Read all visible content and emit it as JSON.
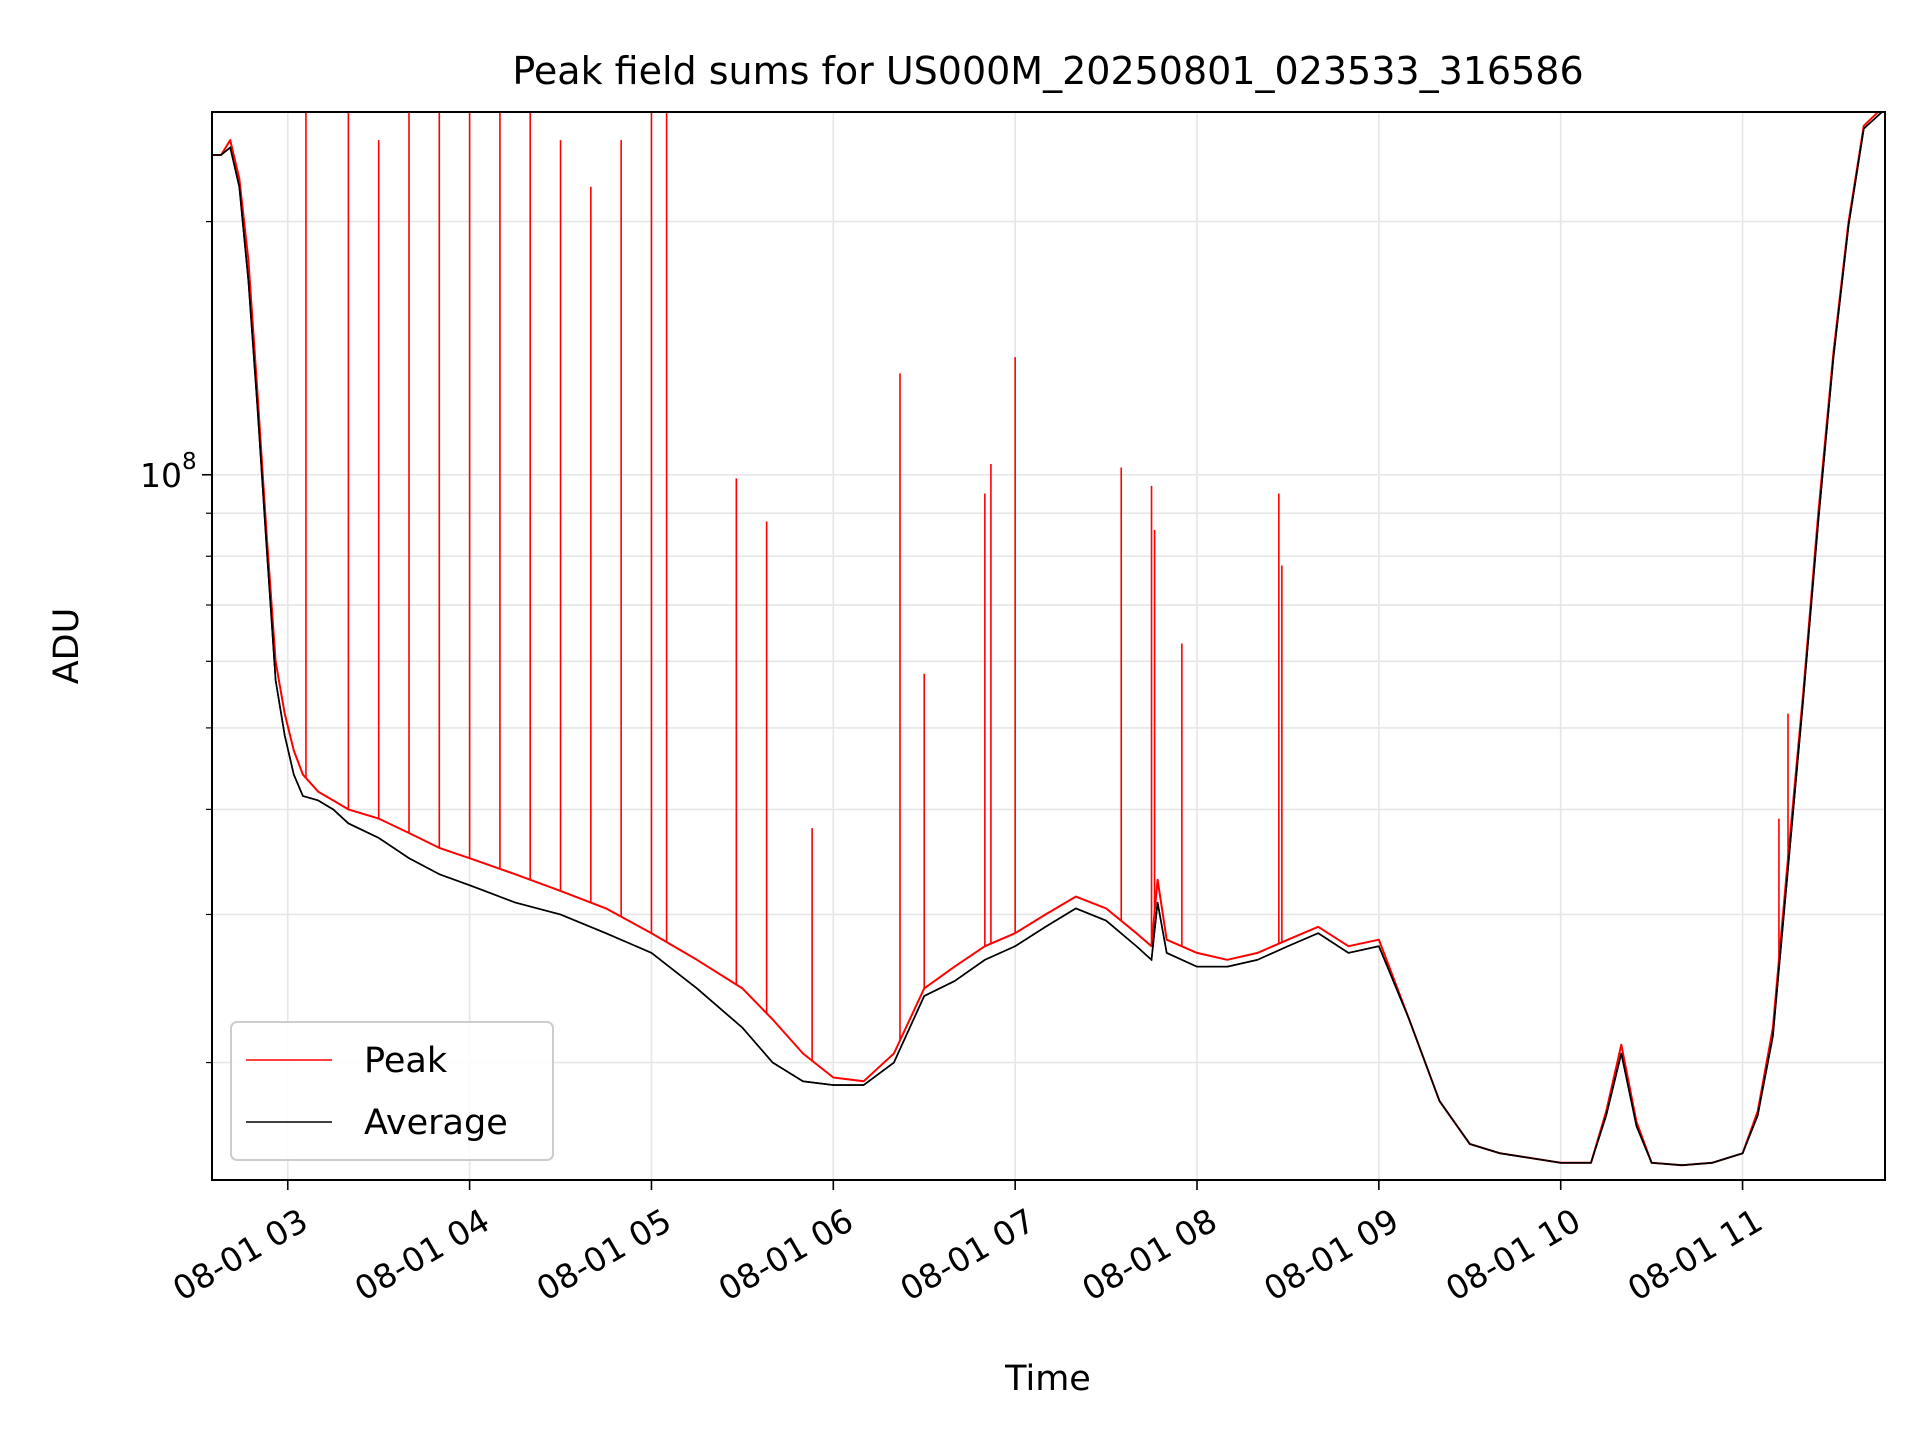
{
  "chart_data": {
    "type": "line",
    "title": "Peak field sums for US000M_20250801_023533_316586",
    "xlabel": "Time",
    "ylabel": "ADU",
    "yscale": "log",
    "ylim": [
      14500000,
      270000000
    ],
    "xlim": [
      "2025-08-01 02:35",
      "2025-08-01 11:47"
    ],
    "grid": true,
    "legend_position": "lower-left",
    "x_tick_labels": [
      "08-01 03",
      "08-01 04",
      "08-01 05",
      "08-01 06",
      "08-01 07",
      "08-01 08",
      "08-01 09",
      "08-01 10",
      "08-01 11"
    ],
    "x_ticks": [
      "2025-08-01 03:00",
      "2025-08-01 04:00",
      "2025-08-01 05:00",
      "2025-08-01 06:00",
      "2025-08-01 07:00",
      "2025-08-01 08:00",
      "2025-08-01 09:00",
      "2025-08-01 10:00",
      "2025-08-01 11:00"
    ],
    "y_tick_label": {
      "base": "10",
      "exponent": "8",
      "value": 100000000
    },
    "y_minor_ticks": [
      20000000,
      30000000,
      40000000,
      50000000,
      60000000,
      70000000,
      80000000,
      90000000,
      200000000
    ],
    "series": [
      {
        "name": "Peak",
        "color": "#ff0000",
        "x": [
          "2025-08-01 02:35",
          "2025-08-01 02:38",
          "2025-08-01 02:41",
          "2025-08-01 02:44",
          "2025-08-01 02:47",
          "2025-08-01 02:50",
          "2025-08-01 02:53",
          "2025-08-01 02:56",
          "2025-08-01 02:59",
          "2025-08-01 03:02",
          "2025-08-01 03:05",
          "2025-08-01 03:10",
          "2025-08-01 03:15",
          "2025-08-01 03:20",
          "2025-08-01 03:30",
          "2025-08-01 03:40",
          "2025-08-01 03:50",
          "2025-08-01 04:00",
          "2025-08-01 04:15",
          "2025-08-01 04:30",
          "2025-08-01 04:45",
          "2025-08-01 05:00",
          "2025-08-01 05:15",
          "2025-08-01 05:30",
          "2025-08-01 05:40",
          "2025-08-01 05:50",
          "2025-08-01 06:00",
          "2025-08-01 06:10",
          "2025-08-01 06:20",
          "2025-08-01 06:30",
          "2025-08-01 06:40",
          "2025-08-01 06:50",
          "2025-08-01 07:00",
          "2025-08-01 07:10",
          "2025-08-01 07:20",
          "2025-08-01 07:30",
          "2025-08-01 07:40",
          "2025-08-01 07:45",
          "2025-08-01 07:47",
          "2025-08-01 07:50",
          "2025-08-01 08:00",
          "2025-08-01 08:10",
          "2025-08-01 08:20",
          "2025-08-01 08:30",
          "2025-08-01 08:40",
          "2025-08-01 08:50",
          "2025-08-01 09:00",
          "2025-08-01 09:10",
          "2025-08-01 09:20",
          "2025-08-01 09:30",
          "2025-08-01 09:40",
          "2025-08-01 09:50",
          "2025-08-01 10:00",
          "2025-08-01 10:10",
          "2025-08-01 10:15",
          "2025-08-01 10:20",
          "2025-08-01 10:25",
          "2025-08-01 10:30",
          "2025-08-01 10:40",
          "2025-08-01 10:50",
          "2025-08-01 11:00",
          "2025-08-01 11:05",
          "2025-08-01 11:10",
          "2025-08-01 11:15",
          "2025-08-01 11:20",
          "2025-08-01 11:25",
          "2025-08-01 11:30",
          "2025-08-01 11:35",
          "2025-08-01 11:40",
          "2025-08-01 11:47"
        ],
        "values": [
          240000000,
          240000000,
          250000000,
          225000000,
          180000000,
          125000000,
          85000000,
          60000000,
          52000000,
          47000000,
          44000000,
          42000000,
          41000000,
          40000000,
          39000000,
          37500000,
          36000000,
          35000000,
          33500000,
          32000000,
          30500000,
          28500000,
          26500000,
          24500000,
          22500000,
          20500000,
          19200000,
          19000000,
          20500000,
          24500000,
          26000000,
          27500000,
          28500000,
          30000000,
          31500000,
          30500000,
          28500000,
          27500000,
          33000000,
          28000000,
          27000000,
          26500000,
          27000000,
          28000000,
          29000000,
          27500000,
          28000000,
          22500000,
          18000000,
          16000000,
          15600000,
          15400000,
          15200000,
          15200000,
          17500000,
          21000000,
          17000000,
          15200000,
          15100000,
          15200000,
          15600000,
          17500000,
          22000000,
          35000000,
          55000000,
          90000000,
          140000000,
          200000000,
          260000000,
          275000000
        ],
        "spikes": [
          {
            "x": "2025-08-01 03:06",
            "value": 270000000
          },
          {
            "x": "2025-08-01 03:20",
            "value": 270000000
          },
          {
            "x": "2025-08-01 03:30",
            "value": 250000000
          },
          {
            "x": "2025-08-01 03:40",
            "value": 270000000
          },
          {
            "x": "2025-08-01 03:50",
            "value": 270000000
          },
          {
            "x": "2025-08-01 04:00",
            "value": 270000000
          },
          {
            "x": "2025-08-01 04:10",
            "value": 270000000
          },
          {
            "x": "2025-08-01 04:20",
            "value": 270000000
          },
          {
            "x": "2025-08-01 04:30",
            "value": 250000000
          },
          {
            "x": "2025-08-01 04:40",
            "value": 220000000
          },
          {
            "x": "2025-08-01 04:50",
            "value": 250000000
          },
          {
            "x": "2025-08-01 05:00",
            "value": 270000000
          },
          {
            "x": "2025-08-01 05:05",
            "value": 270000000
          },
          {
            "x": "2025-08-01 05:28",
            "value": 99000000
          },
          {
            "x": "2025-08-01 05:38",
            "value": 88000000
          },
          {
            "x": "2025-08-01 05:53",
            "value": 38000000
          },
          {
            "x": "2025-08-01 06:22",
            "value": 132000000
          },
          {
            "x": "2025-08-01 06:30",
            "value": 58000000
          },
          {
            "x": "2025-08-01 06:50",
            "value": 95000000
          },
          {
            "x": "2025-08-01 06:52",
            "value": 103000000
          },
          {
            "x": "2025-08-01 07:00",
            "value": 138000000
          },
          {
            "x": "2025-08-01 07:35",
            "value": 102000000
          },
          {
            "x": "2025-08-01 07:45",
            "value": 97000000
          },
          {
            "x": "2025-08-01 07:46",
            "value": 86000000
          },
          {
            "x": "2025-08-01 07:55",
            "value": 63000000
          },
          {
            "x": "2025-08-01 08:27",
            "value": 95000000
          },
          {
            "x": "2025-08-01 08:28",
            "value": 78000000
          },
          {
            "x": "2025-08-01 11:12",
            "value": 39000000
          },
          {
            "x": "2025-08-01 11:15",
            "value": 52000000
          }
        ]
      },
      {
        "name": "Average",
        "color": "#000000",
        "x": [
          "2025-08-01 02:35",
          "2025-08-01 02:38",
          "2025-08-01 02:41",
          "2025-08-01 02:44",
          "2025-08-01 02:47",
          "2025-08-01 02:50",
          "2025-08-01 02:53",
          "2025-08-01 02:56",
          "2025-08-01 02:59",
          "2025-08-01 03:02",
          "2025-08-01 03:05",
          "2025-08-01 03:10",
          "2025-08-01 03:15",
          "2025-08-01 03:20",
          "2025-08-01 03:30",
          "2025-08-01 03:40",
          "2025-08-01 03:50",
          "2025-08-01 04:00",
          "2025-08-01 04:15",
          "2025-08-01 04:30",
          "2025-08-01 04:45",
          "2025-08-01 05:00",
          "2025-08-01 05:15",
          "2025-08-01 05:30",
          "2025-08-01 05:40",
          "2025-08-01 05:50",
          "2025-08-01 06:00",
          "2025-08-01 06:10",
          "2025-08-01 06:20",
          "2025-08-01 06:30",
          "2025-08-01 06:40",
          "2025-08-01 06:50",
          "2025-08-01 07:00",
          "2025-08-01 07:10",
          "2025-08-01 07:20",
          "2025-08-01 07:30",
          "2025-08-01 07:40",
          "2025-08-01 07:45",
          "2025-08-01 07:47",
          "2025-08-01 07:50",
          "2025-08-01 08:00",
          "2025-08-01 08:10",
          "2025-08-01 08:20",
          "2025-08-01 08:30",
          "2025-08-01 08:40",
          "2025-08-01 08:50",
          "2025-08-01 09:00",
          "2025-08-01 09:10",
          "2025-08-01 09:20",
          "2025-08-01 09:30",
          "2025-08-01 09:40",
          "2025-08-01 09:50",
          "2025-08-01 10:00",
          "2025-08-01 10:10",
          "2025-08-01 10:15",
          "2025-08-01 10:20",
          "2025-08-01 10:25",
          "2025-08-01 10:30",
          "2025-08-01 10:40",
          "2025-08-01 10:50",
          "2025-08-01 11:00",
          "2025-08-01 11:05",
          "2025-08-01 11:10",
          "2025-08-01 11:15",
          "2025-08-01 11:20",
          "2025-08-01 11:25",
          "2025-08-01 11:30",
          "2025-08-01 11:35",
          "2025-08-01 11:40",
          "2025-08-01 11:47"
        ],
        "values": [
          240000000,
          240000000,
          245000000,
          220000000,
          170000000,
          120000000,
          82000000,
          57000000,
          49000000,
          44000000,
          41500000,
          41000000,
          40000000,
          38500000,
          37000000,
          35000000,
          33500000,
          32500000,
          31000000,
          30000000,
          28500000,
          27000000,
          24500000,
          22000000,
          20000000,
          19000000,
          18800000,
          18800000,
          20000000,
          24000000,
          25000000,
          26500000,
          27500000,
          29000000,
          30500000,
          29500000,
          27500000,
          26500000,
          31000000,
          27000000,
          26000000,
          26000000,
          26500000,
          27500000,
          28500000,
          27000000,
          27500000,
          22500000,
          18000000,
          16000000,
          15600000,
          15400000,
          15200000,
          15200000,
          17300000,
          20500000,
          16800000,
          15200000,
          15100000,
          15200000,
          15600000,
          17300000,
          21500000,
          34000000,
          54000000,
          88000000,
          138000000,
          198000000,
          258000000,
          272000000
        ]
      }
    ]
  }
}
